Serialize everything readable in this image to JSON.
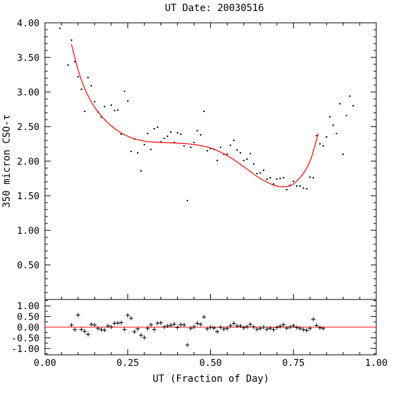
{
  "chart_data": [
    {
      "type": "scatter",
      "panel": "main",
      "title": "UT Date: 20030516",
      "xlabel": "UT (Fraction of Day)",
      "ylabel": "350 micron CSO-τ",
      "xlim": [
        0.0,
        1.0
      ],
      "ylim": [
        0.0,
        4.0
      ],
      "yticks": [
        "0.50",
        "1.00",
        "1.50",
        "2.00",
        "2.50",
        "3.00",
        "3.50",
        "4.00"
      ],
      "grid": false,
      "series": [
        {
          "points": [
            [
              0.045,
              3.92
            ],
            [
              0.07,
              3.39
            ],
            [
              0.08,
              3.75
            ],
            [
              0.09,
              3.44
            ],
            [
              0.1,
              3.22
            ],
            [
              0.11,
              3.04
            ],
            [
              0.12,
              2.72
            ],
            [
              0.13,
              3.21
            ],
            [
              0.14,
              3.09
            ],
            [
              0.15,
              2.86
            ],
            [
              0.16,
              2.71
            ],
            [
              0.17,
              2.64
            ],
            [
              0.18,
              2.79
            ],
            [
              0.2,
              2.81
            ],
            [
              0.21,
              2.73
            ],
            [
              0.22,
              2.74
            ],
            [
              0.23,
              2.39
            ],
            [
              0.24,
              3.01
            ],
            [
              0.25,
              2.87
            ],
            [
              0.26,
              2.14
            ],
            [
              0.27,
              2.32
            ],
            [
              0.28,
              2.12
            ],
            [
              0.29,
              1.86
            ],
            [
              0.3,
              2.24
            ],
            [
              0.31,
              2.4
            ],
            [
              0.32,
              2.17
            ],
            [
              0.33,
              2.47
            ],
            [
              0.34,
              2.49
            ],
            [
              0.35,
              2.28
            ],
            [
              0.36,
              2.33
            ],
            [
              0.37,
              2.36
            ],
            [
              0.38,
              2.42
            ],
            [
              0.39,
              2.27
            ],
            [
              0.4,
              2.41
            ],
            [
              0.41,
              2.39
            ],
            [
              0.42,
              2.22
            ],
            [
              0.43,
              1.43
            ],
            [
              0.44,
              2.2
            ],
            [
              0.45,
              2.27
            ],
            [
              0.46,
              2.44
            ],
            [
              0.47,
              2.38
            ],
            [
              0.48,
              2.72
            ],
            [
              0.49,
              2.15
            ],
            [
              0.5,
              2.18
            ],
            [
              0.51,
              2.17
            ],
            [
              0.52,
              2.01
            ],
            [
              0.53,
              2.2
            ],
            [
              0.54,
              2.1
            ],
            [
              0.55,
              2.1
            ],
            [
              0.56,
              2.23
            ],
            [
              0.57,
              2.3
            ],
            [
              0.58,
              2.16
            ],
            [
              0.59,
              2.12
            ],
            [
              0.6,
              2.01
            ],
            [
              0.61,
              2.03
            ],
            [
              0.62,
              2.11
            ],
            [
              0.63,
              1.96
            ],
            [
              0.64,
              1.82
            ],
            [
              0.65,
              1.83
            ],
            [
              0.66,
              1.87
            ],
            [
              0.67,
              1.74
            ],
            [
              0.68,
              1.76
            ],
            [
              0.69,
              1.67
            ],
            [
              0.7,
              1.74
            ],
            [
              0.71,
              1.75
            ],
            [
              0.72,
              1.76
            ],
            [
              0.73,
              1.59
            ],
            [
              0.74,
              1.65
            ],
            [
              0.75,
              1.71
            ],
            [
              0.76,
              1.64
            ],
            [
              0.77,
              1.64
            ],
            [
              0.78,
              1.61
            ],
            [
              0.79,
              1.6
            ],
            [
              0.8,
              1.77
            ],
            [
              0.81,
              1.76
            ],
            [
              0.82,
              2.37
            ],
            [
              0.83,
              2.25
            ],
            [
              0.84,
              2.22
            ],
            [
              0.85,
              2.35
            ],
            [
              0.86,
              2.64
            ],
            [
              0.87,
              2.52
            ],
            [
              0.88,
              2.4
            ],
            [
              0.89,
              2.83
            ],
            [
              0.9,
              2.1
            ],
            [
              0.91,
              2.66
            ],
            [
              0.92,
              2.94
            ],
            [
              0.93,
              2.8
            ]
          ],
          "color": "#000000"
        },
        {
          "type": "line",
          "fit": "polynomial",
          "x_range": [
            0.08,
            0.825
          ],
          "x": [
            0.08,
            0.1,
            0.12,
            0.15,
            0.2,
            0.25,
            0.3,
            0.35,
            0.4,
            0.45,
            0.5,
            0.55,
            0.6,
            0.65,
            0.7,
            0.72,
            0.75,
            0.8,
            0.825
          ],
          "values": [
            3.69,
            3.32,
            3.05,
            2.78,
            2.51,
            2.36,
            2.29,
            2.27,
            2.26,
            2.24,
            2.19,
            2.08,
            1.92,
            1.75,
            1.64,
            1.63,
            1.67,
            2.0,
            2.4
          ],
          "color": "#ff0000"
        }
      ]
    },
    {
      "type": "scatter",
      "panel": "residuals",
      "xlabel": "UT (Fraction of Day)",
      "xlim": [
        0.0,
        1.0
      ],
      "ylim": [
        -1.3,
        1.3
      ],
      "xticks": [
        "0.00",
        "0.25",
        "0.50",
        "0.75",
        "1.00"
      ],
      "yticks": [
        "-1.00",
        "-0.50",
        "0.00",
        "0.50",
        "1.00"
      ],
      "series": [
        {
          "marker": "+",
          "points": [
            [
              0.08,
              0.1
            ],
            [
              0.09,
              -0.12
            ],
            [
              0.1,
              0.57
            ],
            [
              0.11,
              -0.11
            ],
            [
              0.12,
              -0.2
            ],
            [
              0.13,
              -0.34
            ],
            [
              0.14,
              0.13
            ],
            [
              0.15,
              0.1
            ],
            [
              0.16,
              -0.06
            ],
            [
              0.17,
              -0.12
            ],
            [
              0.18,
              -0.14
            ],
            [
              0.19,
              0.06
            ],
            [
              0.2,
              0.01
            ],
            [
              0.21,
              0.18
            ],
            [
              0.22,
              0.19
            ],
            [
              0.23,
              0.21
            ],
            [
              0.24,
              -0.11
            ],
            [
              0.25,
              0.56
            ],
            [
              0.26,
              0.42
            ],
            [
              0.27,
              -0.22
            ],
            [
              0.28,
              -0.08
            ],
            [
              0.29,
              -0.38
            ],
            [
              0.3,
              -0.49
            ],
            [
              0.31,
              -0.05
            ],
            [
              0.32,
              0.11
            ],
            [
              0.33,
              -0.11
            ],
            [
              0.34,
              0.19
            ],
            [
              0.35,
              0.2
            ],
            [
              0.36,
              0.01
            ],
            [
              0.37,
              0.06
            ],
            [
              0.38,
              0.09
            ],
            [
              0.39,
              0.14
            ],
            [
              0.4,
              -0.02
            ],
            [
              0.41,
              0.12
            ],
            [
              0.42,
              0.1
            ],
            [
              0.43,
              -0.84
            ],
            [
              0.44,
              -0.06
            ],
            [
              0.45,
              0.01
            ],
            [
              0.46,
              0.18
            ],
            [
              0.47,
              0.13
            ],
            [
              0.48,
              0.48
            ],
            [
              0.49,
              -0.08
            ],
            [
              0.5,
              -0.01
            ],
            [
              0.51,
              -0.04
            ],
            [
              0.52,
              -0.21
            ],
            [
              0.53,
              -0.01
            ],
            [
              0.54,
              -0.09
            ],
            [
              0.55,
              -0.06
            ],
            [
              0.56,
              0.07
            ],
            [
              0.57,
              0.18
            ],
            [
              0.58,
              0.06
            ],
            [
              0.59,
              0.06
            ],
            [
              0.6,
              -0.03
            ],
            [
              0.61,
              0.02
            ],
            [
              0.62,
              0.13
            ],
            [
              0.63,
              0.01
            ],
            [
              0.64,
              -0.1
            ],
            [
              0.65,
              -0.06
            ],
            [
              0.66,
              0.0
            ],
            [
              0.67,
              -0.1
            ],
            [
              0.68,
              -0.05
            ],
            [
              0.69,
              -0.12
            ],
            [
              0.7,
              -0.02
            ],
            [
              0.71,
              0.04
            ],
            [
              0.72,
              0.11
            ],
            [
              0.73,
              -0.05
            ],
            [
              0.74,
              0.01
            ],
            [
              0.75,
              0.07
            ],
            [
              0.76,
              -0.02
            ],
            [
              0.77,
              -0.06
            ],
            [
              0.78,
              -0.12
            ],
            [
              0.79,
              -0.15
            ],
            [
              0.8,
              -0.06
            ],
            [
              0.81,
              0.37
            ],
            [
              0.82,
              0.08
            ],
            [
              0.83,
              -0.03
            ],
            [
              0.84,
              -0.06
            ]
          ],
          "color": "#000000"
        },
        {
          "type": "line",
          "x": [
            0.0,
            1.0
          ],
          "values": [
            0.0,
            0.0
          ],
          "color": "#ff0000"
        }
      ]
    }
  ]
}
